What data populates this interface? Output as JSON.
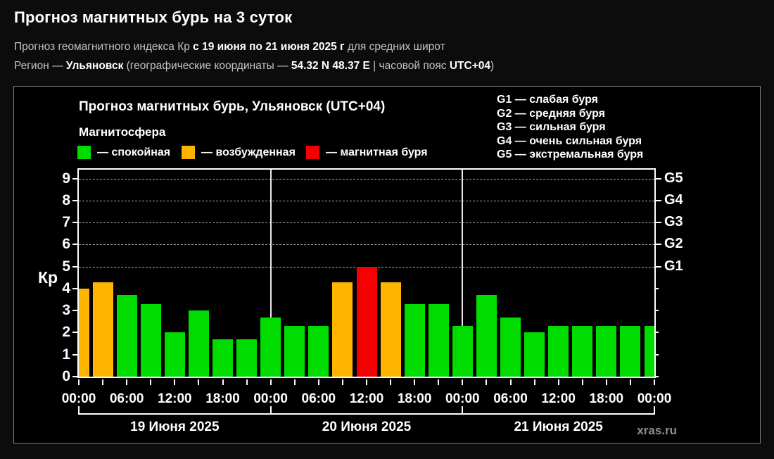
{
  "header": {
    "title": "Прогноз магнитных бурь на 3 суток",
    "subtitle": {
      "t1": "Прогноз геомагнитного индекса Кр ",
      "date_range": "с 19 июня по 21 июня 2025 г",
      "t2": " для средних широт"
    },
    "region_line": {
      "t1": "Регион — ",
      "region": "Ульяновск",
      "t2": " (географические координаты — ",
      "coords": "54.32 N 48.37 E",
      "t3": " | часовой пояс ",
      "timezone": "UTC+04",
      "t4": ")"
    }
  },
  "panel": {
    "chart_title": "Прогноз магнитных бурь, Ульяновск (UTC+04)",
    "magnetosphere_label": "Магнитосфера",
    "legend": [
      {
        "key": "quiet",
        "label": "— спокойная",
        "color": "#00dc00"
      },
      {
        "key": "excited",
        "label": "— возбужденная",
        "color": "#ffb400"
      },
      {
        "key": "storm",
        "label": "— магнитная буря",
        "color": "#f50000"
      }
    ],
    "g_scale_legend": [
      "G1 — слабая буря",
      "G2 — средняя буря",
      "G3 — сильная буря",
      "G4 — очень сильная буря",
      "G5 — экстремальная буря"
    ],
    "watermark": "xras.ru"
  },
  "chart_data": {
    "type": "bar",
    "title": "Прогноз магнитных бурь, Ульяновск (UTC+04)",
    "ylabel": "Кр",
    "xlabel": "",
    "ylim": [
      0,
      9.4
    ],
    "yticks": [
      0,
      1,
      2,
      3,
      4,
      5,
      6,
      7,
      8,
      9
    ],
    "gridlines_kp": [
      5,
      6,
      7,
      8,
      9
    ],
    "grid_style": "dashed horizontal at G-storm levels only",
    "right_axis_labels": [
      {
        "kp": 5,
        "label": "G1"
      },
      {
        "kp": 6,
        "label": "G2"
      },
      {
        "kp": 7,
        "label": "G3"
      },
      {
        "kp": 8,
        "label": "G4"
      },
      {
        "kp": 9,
        "label": "G5"
      }
    ],
    "x_hours": [
      0,
      3,
      6,
      9,
      12,
      15,
      18,
      21,
      24,
      27,
      30,
      33,
      36,
      39,
      42,
      45,
      48,
      51,
      54,
      57,
      60,
      63,
      66,
      69,
      72
    ],
    "values": [
      4.0,
      4.3,
      3.7,
      3.3,
      2.0,
      3.0,
      1.7,
      1.7,
      2.7,
      2.3,
      2.3,
      4.3,
      5.0,
      4.3,
      3.3,
      3.3,
      2.3,
      3.7,
      2.7,
      2.0,
      2.3,
      2.3,
      2.3,
      2.3,
      2.3
    ],
    "bar_colors": [
      "orange",
      "orange",
      "green",
      "green",
      "green",
      "green",
      "green",
      "green",
      "green",
      "green",
      "green",
      "orange",
      "red",
      "orange",
      "green",
      "green",
      "green",
      "green",
      "green",
      "green",
      "green",
      "green",
      "green",
      "green",
      "green"
    ],
    "palette": {
      "green": "#00dc00",
      "orange": "#ffb400",
      "red": "#f50000"
    },
    "x_tick_step_hours": 3,
    "x_tick_labels": [
      "00:00",
      "06:00",
      "12:00",
      "18:00",
      "00:00",
      "06:00",
      "12:00",
      "18:00",
      "00:00",
      "06:00",
      "12:00",
      "18:00",
      "00:00"
    ],
    "day_labels": [
      "19 Июня 2025",
      "20 Июня 2025",
      "21 Июня 2025"
    ],
    "day_boundaries_hours": [
      24,
      48
    ],
    "legend_position": "top",
    "legend_entries": [
      "спокойная",
      "возбужденная",
      "магнитная буря"
    ]
  }
}
